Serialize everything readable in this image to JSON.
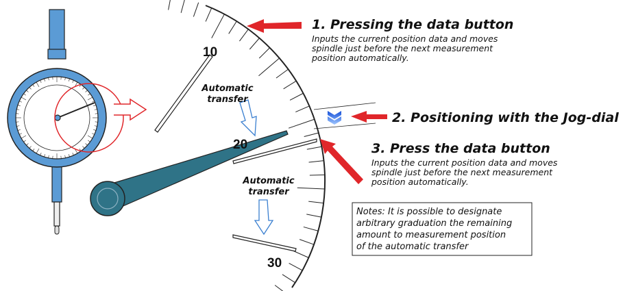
{
  "steps": [
    {
      "title": "1. Pressing the data button",
      "description": [
        "Inputs the current position data and moves",
        "spindle just before the next measurement",
        "position automatically."
      ]
    },
    {
      "title": "2. Positioning with the Jog-dial"
    },
    {
      "title": "3. Press the data button",
      "description": [
        "Inputs the current position data and moves",
        "spindle just before the next measurement",
        "position automatically."
      ]
    }
  ],
  "notes": [
    "Notes: It is possible to designate",
    "arbitrary graduation the remaining",
    "amount to measurement position",
    "of the automatic transfer"
  ],
  "scale_labels": [
    "10",
    "20",
    "30"
  ],
  "transfer_labels": [
    [
      "Automatic",
      "transfer"
    ],
    [
      "Automatic",
      "transfer"
    ]
  ]
}
